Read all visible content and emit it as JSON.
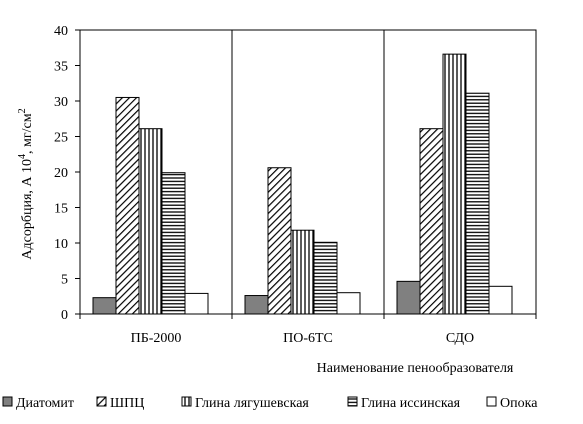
{
  "chart_data": {
    "type": "bar",
    "ylabel_main": "Адсорбция, А 10",
    "ylabel_exp": "4",
    "ylabel_unit": ", мг/см",
    "ylabel_unit_exp": "2",
    "xlabel": "Наименование пенообразователя",
    "categories": [
      "ПБ-2000",
      "ПО-6ТС",
      "СДО"
    ],
    "ylim": [
      0,
      40
    ],
    "yticks": [
      "0",
      "5",
      "10",
      "15",
      "20",
      "25",
      "30",
      "35",
      "40"
    ],
    "grid": "vertical separators between categories",
    "legend_position": "bottom",
    "series": [
      {
        "name": "Диатомит",
        "values": [
          2.3,
          2.6,
          4.6
        ],
        "pattern": "solid-gray",
        "color": "#808080"
      },
      {
        "name": "ШПЦ",
        "values": [
          30.5,
          20.6,
          26.1
        ],
        "pattern": "diagonal-hatch",
        "color": "#000000"
      },
      {
        "name": "Глина лягушевская",
        "values": [
          26.1,
          11.8,
          36.6
        ],
        "pattern": "vertical-lines",
        "color": "#000000"
      },
      {
        "name": "Глина иссинская",
        "values": [
          19.9,
          10.1,
          31.1
        ],
        "pattern": "horizontal-lines",
        "color": "#000000"
      },
      {
        "name": "Опока",
        "values": [
          2.9,
          3.0,
          3.9
        ],
        "pattern": "white",
        "color": "#ffffff"
      }
    ]
  }
}
